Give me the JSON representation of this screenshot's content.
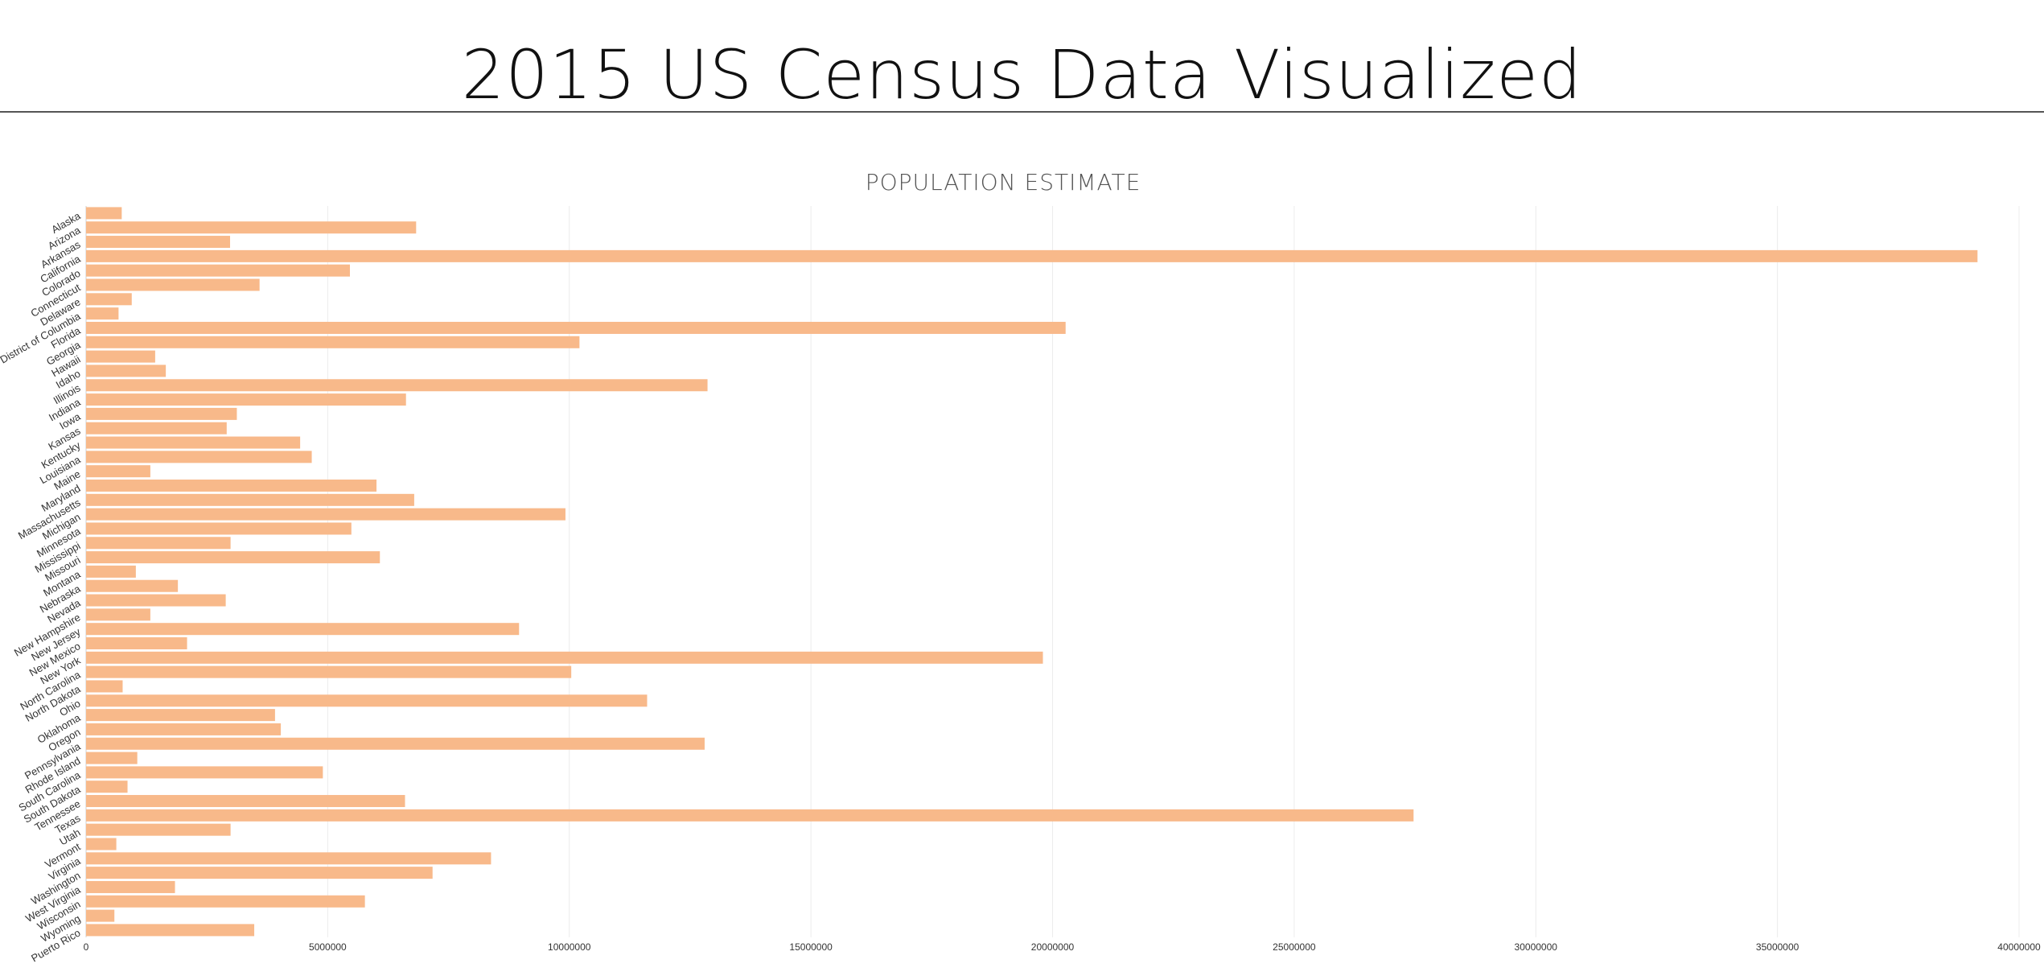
{
  "header": {
    "title": "2015 US Census Data Visualized"
  },
  "chart_data": {
    "type": "bar",
    "orientation": "horizontal",
    "title": "POPULATION ESTIMATE",
    "xlabel": "",
    "ylabel": "",
    "xlim": [
      0,
      40000000
    ],
    "xticks": [
      "0",
      "5000000",
      "10000000",
      "15000000",
      "20000000",
      "25000000",
      "30000000",
      "35000000",
      "40000000"
    ],
    "grid": true,
    "bar_color": "#f8b98a",
    "categories": [
      "Alaska",
      "Arizona",
      "Arkansas",
      "California",
      "Colorado",
      "Connecticut",
      "Delaware",
      "District of Columbia",
      "Florida",
      "Georgia",
      "Hawaii",
      "Idaho",
      "Illinois",
      "Indiana",
      "Iowa",
      "Kansas",
      "Kentucky",
      "Louisiana",
      "Maine",
      "Maryland",
      "Massachusetts",
      "Michigan",
      "Minnesota",
      "Mississippi",
      "Missouri",
      "Montana",
      "Nebraska",
      "Nevada",
      "New Hampshire",
      "New Jersey",
      "New Mexico",
      "New York",
      "North Carolina",
      "North Dakota",
      "Ohio",
      "Oklahoma",
      "Oregon",
      "Pennsylvania",
      "Rhode Island",
      "South Carolina",
      "South Dakota",
      "Tennessee",
      "Texas",
      "Utah",
      "Vermont",
      "Virginia",
      "Washington",
      "West Virginia",
      "Wisconsin",
      "Wyoming",
      "Puerto Rico"
    ],
    "values": [
      738000,
      6830000,
      2980000,
      39140000,
      5460000,
      3590000,
      945000,
      672000,
      20270000,
      10210000,
      1430000,
      1650000,
      12860000,
      6620000,
      3120000,
      2910000,
      4430000,
      4670000,
      1330000,
      6010000,
      6790000,
      9920000,
      5490000,
      2990000,
      6080000,
      1030000,
      1900000,
      2890000,
      1330000,
      8960000,
      2090000,
      19800000,
      10040000,
      757000,
      11610000,
      3910000,
      4030000,
      12800000,
      1060000,
      4900000,
      858000,
      6600000,
      27470000,
      2990000,
      626000,
      8380000,
      7170000,
      1840000,
      5770000,
      586000,
      3480000
    ]
  }
}
